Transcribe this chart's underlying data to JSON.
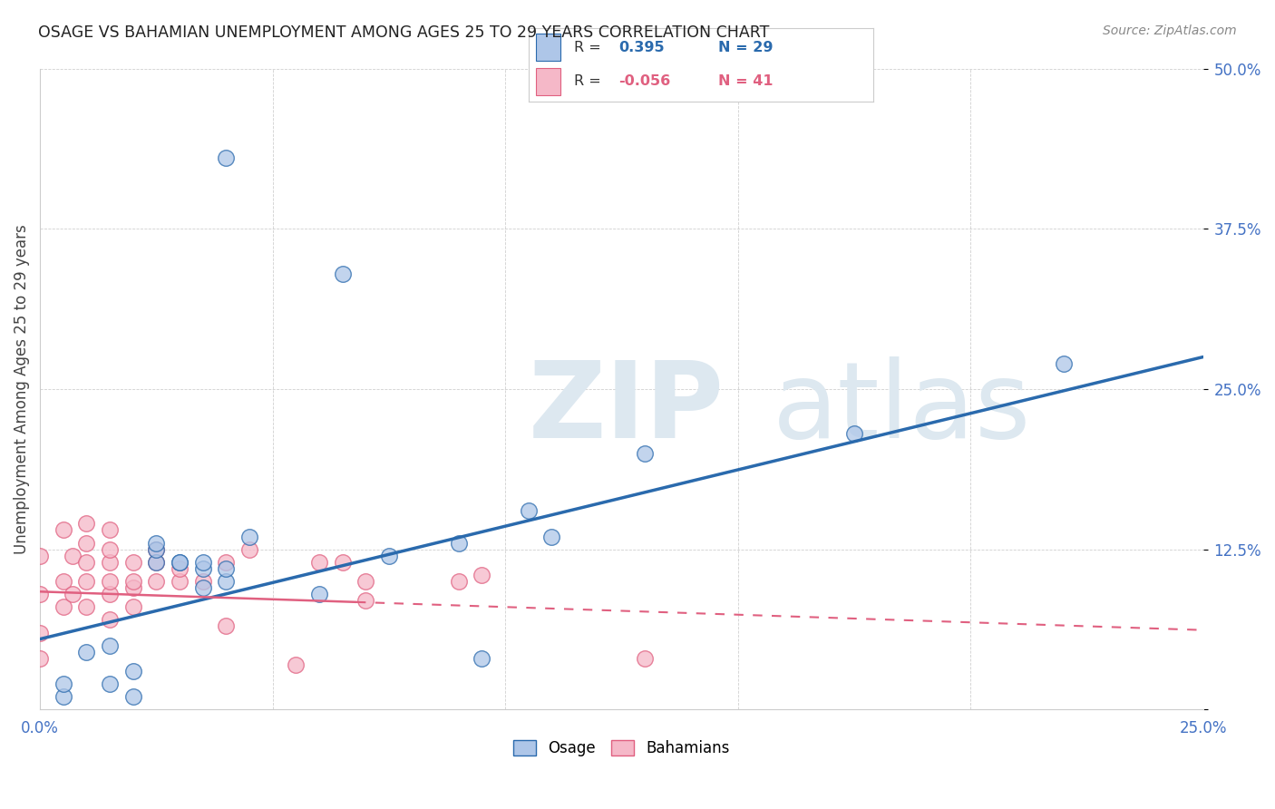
{
  "title": "OSAGE VS BAHAMIAN UNEMPLOYMENT AMONG AGES 25 TO 29 YEARS CORRELATION CHART",
  "source": "Source: ZipAtlas.com",
  "ylabel": "Unemployment Among Ages 25 to 29 years",
  "xlim": [
    0,
    0.25
  ],
  "ylim": [
    0,
    0.5
  ],
  "osage_R": 0.395,
  "osage_N": 29,
  "bahamian_R": -0.056,
  "bahamian_N": 41,
  "osage_color": "#aec6e8",
  "bahamian_color": "#f5b8c8",
  "osage_line_color": "#2a6aad",
  "bahamian_line_color": "#e06080",
  "tick_color": "#4472c4",
  "osage_x": [
    0.005,
    0.005,
    0.01,
    0.015,
    0.015,
    0.02,
    0.02,
    0.025,
    0.025,
    0.025,
    0.03,
    0.03,
    0.035,
    0.035,
    0.035,
    0.04,
    0.04,
    0.04,
    0.045,
    0.06,
    0.065,
    0.075,
    0.09,
    0.095,
    0.105,
    0.11,
    0.13,
    0.175,
    0.22
  ],
  "osage_y": [
    0.01,
    0.02,
    0.045,
    0.02,
    0.05,
    0.01,
    0.03,
    0.115,
    0.125,
    0.13,
    0.115,
    0.115,
    0.095,
    0.11,
    0.115,
    0.1,
    0.11,
    0.43,
    0.135,
    0.09,
    0.34,
    0.12,
    0.13,
    0.04,
    0.155,
    0.135,
    0.2,
    0.215,
    0.27
  ],
  "bahamian_x": [
    0.0,
    0.0,
    0.0,
    0.0,
    0.005,
    0.005,
    0.005,
    0.007,
    0.007,
    0.01,
    0.01,
    0.01,
    0.01,
    0.01,
    0.015,
    0.015,
    0.015,
    0.015,
    0.015,
    0.015,
    0.02,
    0.02,
    0.02,
    0.02,
    0.025,
    0.025,
    0.025,
    0.03,
    0.03,
    0.035,
    0.04,
    0.04,
    0.045,
    0.055,
    0.06,
    0.065,
    0.07,
    0.07,
    0.09,
    0.095,
    0.13
  ],
  "bahamian_y": [
    0.04,
    0.06,
    0.09,
    0.12,
    0.08,
    0.1,
    0.14,
    0.09,
    0.12,
    0.08,
    0.1,
    0.115,
    0.13,
    0.145,
    0.07,
    0.09,
    0.1,
    0.115,
    0.125,
    0.14,
    0.08,
    0.095,
    0.1,
    0.115,
    0.1,
    0.115,
    0.125,
    0.1,
    0.11,
    0.1,
    0.065,
    0.115,
    0.125,
    0.035,
    0.115,
    0.115,
    0.085,
    0.1,
    0.1,
    0.105,
    0.04
  ],
  "osage_line_x0": 0.0,
  "osage_line_y0": 0.055,
  "osage_line_x1": 0.25,
  "osage_line_y1": 0.275,
  "bahamian_line_x0": 0.0,
  "bahamian_line_y0": 0.092,
  "bahamian_line_x1": 0.25,
  "bahamian_line_y1": 0.062
}
